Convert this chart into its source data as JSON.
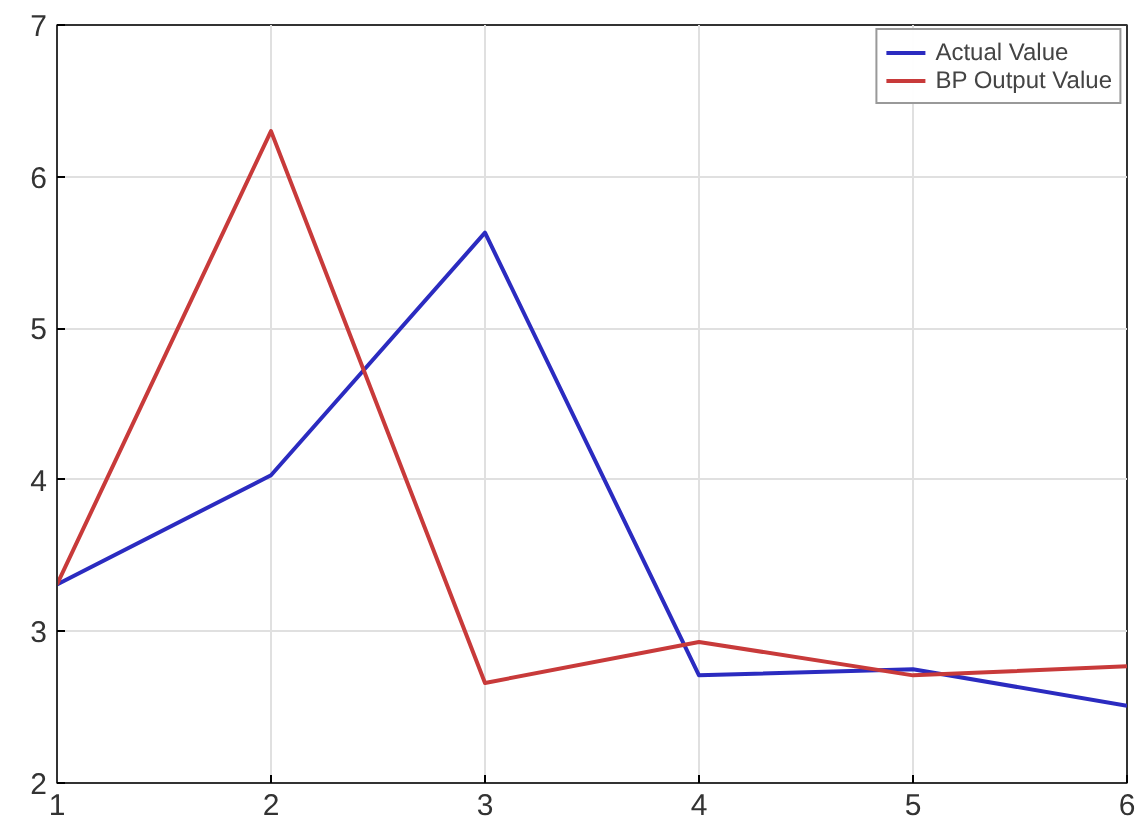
{
  "chart_data": {
    "type": "line",
    "x": [
      1,
      2,
      3,
      4,
      5,
      6
    ],
    "series": [
      {
        "name": "Actual Value",
        "color": "#2b2bc0",
        "values": [
          3.31,
          4.03,
          5.63,
          2.71,
          2.75,
          2.51
        ]
      },
      {
        "name": "BP Output Value",
        "color": "#c83a3a",
        "values": [
          3.31,
          6.3,
          2.66,
          2.93,
          2.71,
          2.77
        ]
      }
    ],
    "xlim": [
      1,
      6
    ],
    "ylim": [
      2,
      7
    ],
    "xticks": [
      1,
      2,
      3,
      4,
      5,
      6
    ],
    "yticks": [
      2,
      3,
      4,
      5,
      6,
      7
    ],
    "grid": true,
    "legend": "top right",
    "line_style": "solid"
  }
}
